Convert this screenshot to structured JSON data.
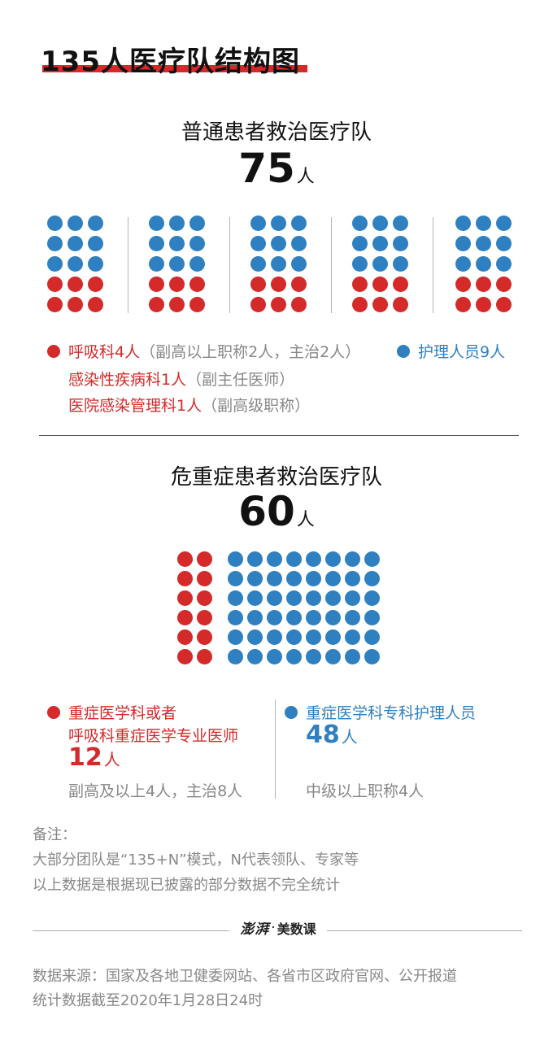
{
  "title": "135人医疗队结构图",
  "general_team": {
    "title": "普通患者救治医疗队",
    "total": "75",
    "unit": "人",
    "groups": 5,
    "doctors_per_group": 6,
    "nurses_per_group": 9,
    "doctor_color": "#d42a2a",
    "nurse_color": "#2f80c1",
    "legend": {
      "line1_red": "呼吸科4人",
      "line1_gray": "（副高以上职称2人，主治2人）",
      "line2_red": "感染性疾病科1人",
      "line2_gray": "（副主任医师）",
      "line3_red": "医院感染管理科1人",
      "line3_gray": "（副高级职称）",
      "nurse_label": "护理人员9人"
    }
  },
  "critical_team": {
    "title": "危重症患者救治医疗队",
    "total": "60",
    "unit": "人",
    "doctors": 12,
    "nurses": 48,
    "doctor_label_1": "重症医学科或者",
    "doctor_label_2": "呼吸科重症医学专业医师",
    "doctor_count": "12",
    "doctor_unit": "人",
    "doctor_detail": "副高及以上4人，主治8人",
    "nurse_label": "重症医学科专科护理人员",
    "nurse_count": "48",
    "nurse_unit": "人",
    "nurse_detail": "中级以上职称4人"
  },
  "notes": {
    "heading": "备注：",
    "line1": "大部分团队是“135+N”模式，N代表领队、专家等",
    "line2": "以上数据是根据现已披露的部分数据不完全统计"
  },
  "brand": {
    "logo": "澎湃",
    "separator": "·",
    "name": "美数课"
  },
  "footer": {
    "line1": "数据来源：国家及各地卫健委网站、各省市区政府官网、公开报道",
    "line2": "统计数据截至2020年1月28日24时"
  }
}
